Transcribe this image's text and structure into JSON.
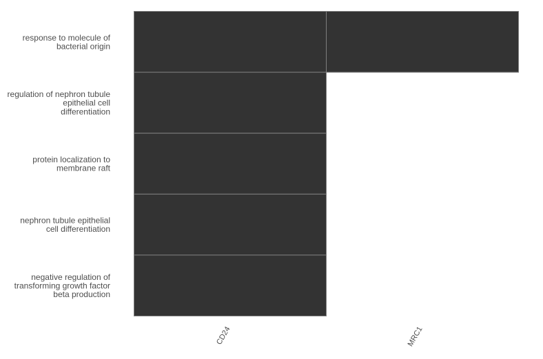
{
  "chart_data": {
    "type": "heatmap",
    "title": "",
    "xlabel": "",
    "ylabel": "",
    "legend": "none",
    "grid": false,
    "fill_color": "#333333",
    "cell_border_color": "#7f7f7f",
    "label_color": "#4d4d4d",
    "x_categories": [
      "CD24",
      "MRC1"
    ],
    "y_categories": [
      {
        "name": "response to molecule of bacterial origin",
        "lines": [
          "response to molecule of",
          "bacterial origin"
        ]
      },
      {
        "name": "regulation of nephron tubule epithelial cell differentiation",
        "lines": [
          "regulation of nephron tubule",
          "epithelial cell",
          "differentiation"
        ]
      },
      {
        "name": "protein localization to membrane raft",
        "lines": [
          "protein localization to",
          "membrane raft"
        ]
      },
      {
        "name": "nephron tubule epithelial cell differentiation",
        "lines": [
          "nephron tubule epithelial",
          "cell differentiation"
        ]
      },
      {
        "name": "negative regulation of transforming growth factor beta production",
        "lines": [
          "negative regulation of",
          "transforming growth factor",
          "beta production"
        ]
      }
    ],
    "cells": [
      {
        "x": "CD24",
        "y": "response to molecule of bacterial origin",
        "present": true
      },
      {
        "x": "MRC1",
        "y": "response to molecule of bacterial origin",
        "present": true
      },
      {
        "x": "CD24",
        "y": "regulation of nephron tubule epithelial cell differentiation",
        "present": true
      },
      {
        "x": "CD24",
        "y": "protein localization to membrane raft",
        "present": true
      },
      {
        "x": "CD24",
        "y": "nephron tubule epithelial cell differentiation",
        "present": true
      },
      {
        "x": "CD24",
        "y": "negative regulation of transforming growth factor beta production",
        "present": true
      }
    ]
  }
}
